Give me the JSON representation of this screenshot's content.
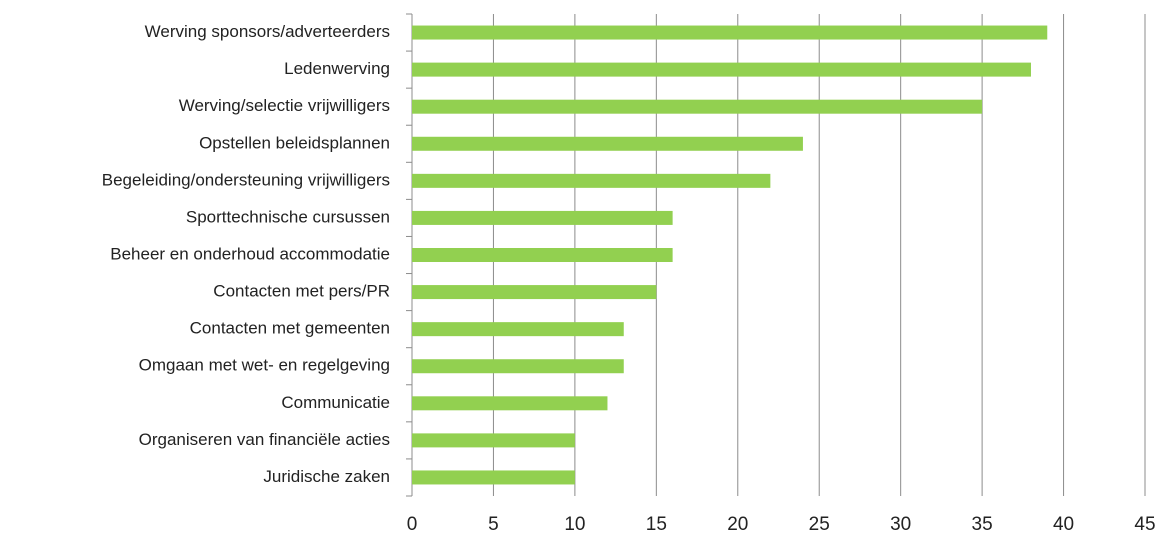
{
  "chart_data": {
    "type": "bar",
    "orientation": "horizontal",
    "categories": [
      "Werving sponsors/adverteerders",
      "Ledenwerving",
      "Werving/selectie vrijwilligers",
      "Opstellen beleidsplannen",
      "Begeleiding/ondersteuning vrijwilligers",
      "Sporttechnische cursussen",
      "Beheer en onderhoud accommodatie",
      "Contacten met pers/PR",
      "Contacten met gemeenten",
      "Omgaan met wet- en regelgeving",
      "Communicatie",
      "Organiseren van financiële acties",
      "Juridische zaken"
    ],
    "values": [
      39,
      38,
      35,
      24,
      22,
      16,
      16,
      15,
      13,
      13,
      12,
      10,
      10
    ],
    "color": "#92d050",
    "xlim": [
      0,
      45
    ],
    "xticks": [
      0,
      5,
      10,
      15,
      20,
      25,
      30,
      35,
      40,
      45
    ],
    "grid": true
  }
}
